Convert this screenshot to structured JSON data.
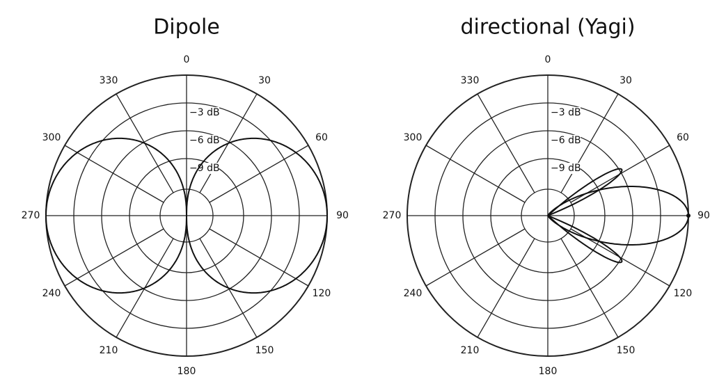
{
  "diagrams": [
    {
      "title": "Dipole",
      "angle_labels": [
        "0",
        "30",
        "60",
        "90",
        "120",
        "150",
        "180",
        "210",
        "240",
        "270",
        "300",
        "330"
      ],
      "ring_labels": [
        "−3 dB",
        "−6 dB",
        "−9 dB"
      ]
    },
    {
      "title": "directional (Yagi)",
      "angle_labels": [
        "0",
        "30",
        "60",
        "90",
        "120",
        "150",
        "180",
        "210",
        "240",
        "270",
        "300",
        "330"
      ],
      "ring_labels": [
        "−3 dB",
        "−6 dB",
        "−9 dB"
      ]
    }
  ]
}
